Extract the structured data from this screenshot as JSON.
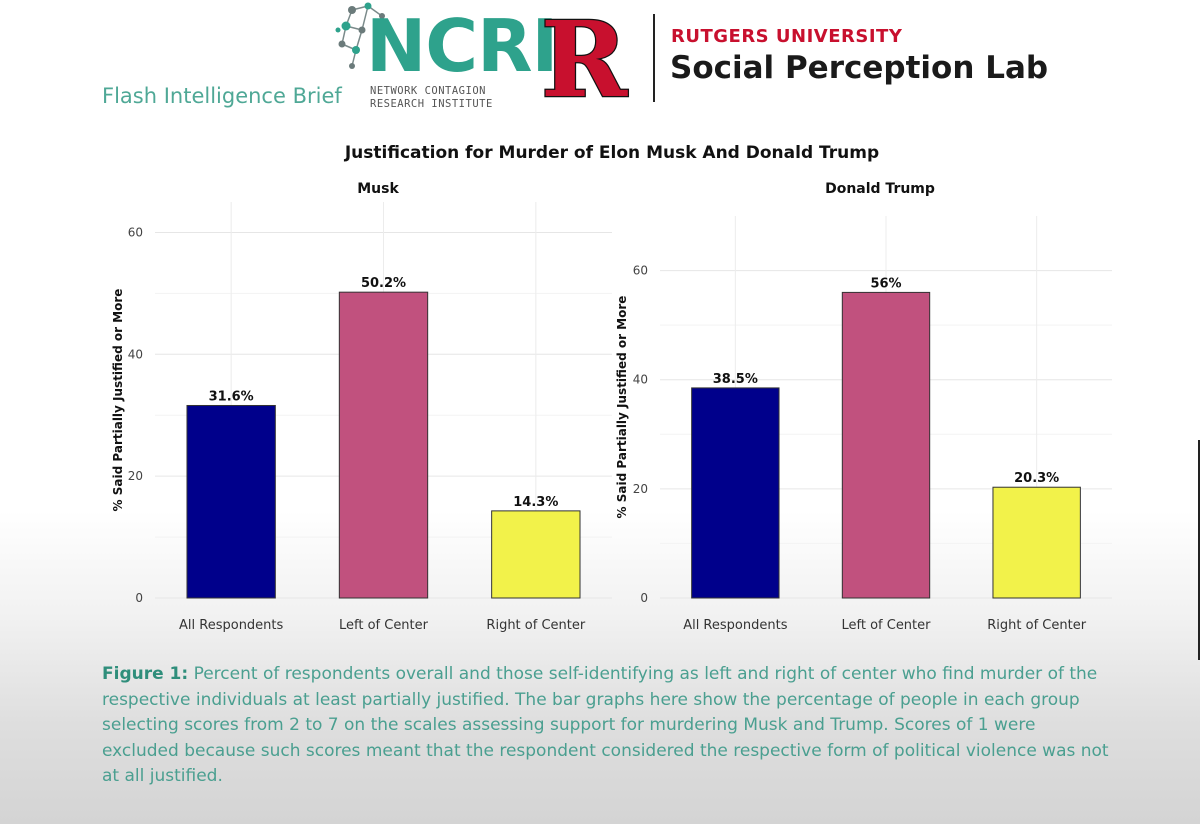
{
  "header": {
    "brief_label": "Flash Intelligence Brief",
    "ncri_letters": "NCRI",
    "ncri_subtitle": "NETWORK CONTAGION\nRESEARCH INSTITUTE",
    "rutgers_letter": "R",
    "rutgers_name": "RUTGERS UNIVERSITY",
    "lab_name": "Social Perception Lab",
    "colors": {
      "ncri_teal": "#2ea28c",
      "rutgers_red": "#c8102e"
    }
  },
  "chart_title": "Justification for Murder of Elon Musk And Donald Trump",
  "chart_data": [
    {
      "type": "bar",
      "title": "Musk",
      "xlabel": "",
      "ylabel": "% Said Partially Justified or More",
      "categories": [
        "All Respondents",
        "Left of Center",
        "Right of Center"
      ],
      "values": [
        31.6,
        50.2,
        14.3
      ],
      "data_labels": [
        "31.6%",
        "50.2%",
        "14.3%"
      ],
      "colors": [
        "#00008b",
        "#c1517e",
        "#f2f24a"
      ],
      "ylim": [
        0,
        65
      ],
      "yticks": [
        0,
        20,
        40,
        60
      ],
      "grid": true
    },
    {
      "type": "bar",
      "title": "Donald Trump",
      "xlabel": "",
      "ylabel": "% Said Partially Justified or More",
      "categories": [
        "All Respondents",
        "Left of Center",
        "Right of Center"
      ],
      "values": [
        38.5,
        56,
        20.3
      ],
      "data_labels": [
        "38.5%",
        "56%",
        "20.3%"
      ],
      "colors": [
        "#00008b",
        "#c1517e",
        "#f2f24a"
      ],
      "ylim": [
        0,
        70
      ],
      "yticks": [
        0,
        20,
        40,
        60
      ],
      "grid": true
    }
  ],
  "caption": {
    "label": "Figure 1:",
    "text": " Percent of respondents overall and those self-identifying as left and right of center who find murder of the respective individuals at least partially justified. The bar graphs here show the percentage of people in each group selecting scores from 2 to 7 on the scales assessing support for murdering Musk and Trump. Scores of 1 were excluded because such scores meant that the respondent considered the respective form of political violence was not at all justified."
  }
}
